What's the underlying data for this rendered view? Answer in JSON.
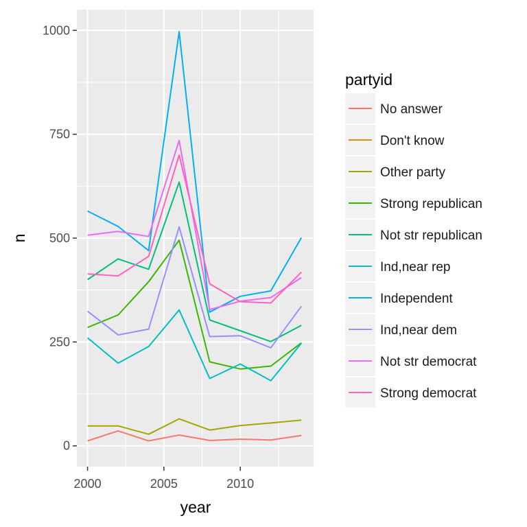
{
  "chart_data": {
    "type": "line",
    "xlabel": "year",
    "ylabel": "n",
    "xlim": [
      1999.3,
      2014.8
    ],
    "ylim": [
      -50,
      1050
    ],
    "x_ticks": [
      2000,
      2005,
      2010
    ],
    "x_tick_labels": [
      "2000",
      "2005",
      "2010"
    ],
    "y_ticks": [
      0,
      250,
      500,
      750,
      1000
    ],
    "y_tick_labels": [
      "0",
      "250",
      "500",
      "750",
      "1000"
    ],
    "grid": true,
    "legend_title": "partyid",
    "legend_position": "right",
    "x": [
      2000,
      2002,
      2004,
      2006,
      2008,
      2010,
      2012,
      2014
    ],
    "series": [
      {
        "name": "No answer",
        "color": "#F8766D",
        "values": [
          12,
          36,
          12,
          26,
          13,
          16,
          14,
          25
        ]
      },
      {
        "name": "Don't know",
        "color": "#D89000",
        "values": [
          null,
          null,
          null,
          null,
          null,
          null,
          null,
          null
        ]
      },
      {
        "name": "Other party",
        "color": "#A3A500",
        "values": [
          48,
          48,
          28,
          65,
          38,
          49,
          55,
          62
        ]
      },
      {
        "name": "Strong republican",
        "color": "#39B600",
        "values": [
          285,
          315,
          395,
          495,
          202,
          185,
          192,
          248
        ]
      },
      {
        "name": "Not str republican",
        "color": "#00BF7D",
        "values": [
          400,
          450,
          425,
          635,
          303,
          277,
          251,
          290
        ]
      },
      {
        "name": "Ind,near rep",
        "color": "#00BFC4",
        "values": [
          260,
          199,
          239,
          327,
          162,
          197,
          157,
          247
        ]
      },
      {
        "name": "Independent",
        "color": "#00B0F6",
        "values": [
          565,
          528,
          470,
          997,
          322,
          360,
          373,
          501
        ]
      },
      {
        "name": "Ind,near dem",
        "color": "#9590FF",
        "values": [
          324,
          267,
          281,
          527,
          263,
          265,
          236,
          336
        ]
      },
      {
        "name": "Not str democrat",
        "color": "#E76BF3",
        "values": [
          507,
          516,
          504,
          735,
          328,
          348,
          357,
          405
        ]
      },
      {
        "name": "Strong democrat",
        "color": "#FF62BC",
        "values": [
          414,
          409,
          456,
          700,
          390,
          347,
          344,
          418
        ]
      }
    ]
  }
}
